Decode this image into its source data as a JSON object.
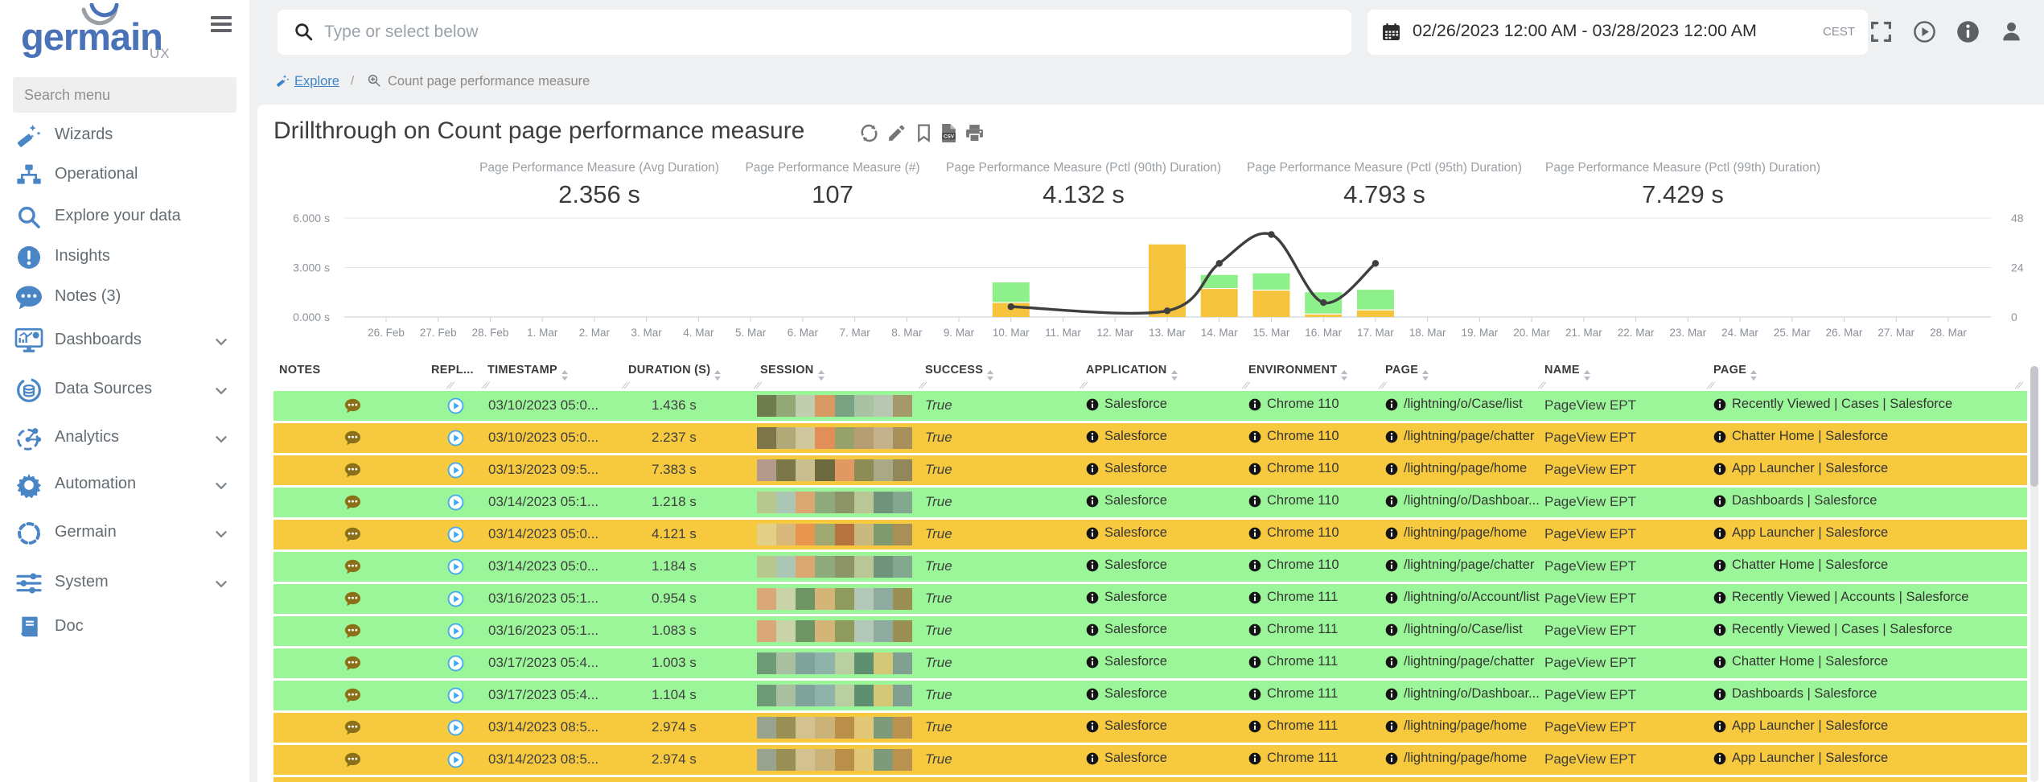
{
  "app": {
    "logo_text": "germain",
    "logo_sub": "UX"
  },
  "topbar": {
    "search_placeholder": "Type or select below",
    "date_range": "02/26/2023 12:00 AM - 03/28/2023 12:00 AM",
    "timezone": "CEST",
    "icons": [
      "fullscreen-icon",
      "play-circle-icon",
      "info-circle-icon",
      "user-icon"
    ]
  },
  "sidebar": {
    "search_placeholder": "Search menu",
    "items": [
      {
        "label": "Wizards",
        "icon": "wand-icon",
        "expandable": false
      },
      {
        "label": "Operational",
        "icon": "sitemap-icon",
        "expandable": false
      },
      {
        "label": "Explore your data",
        "icon": "search-icon",
        "expandable": false
      },
      {
        "label": "Insights",
        "icon": "insight-icon",
        "expandable": false
      },
      {
        "label": "Notes (3)",
        "icon": "comment-icon",
        "expandable": false
      },
      {
        "label": "Dashboards",
        "icon": "dashboard-icon",
        "expandable": true
      },
      {
        "label": "Data Sources",
        "icon": "datasource-icon",
        "expandable": true
      },
      {
        "label": "Analytics",
        "icon": "analytics-icon",
        "expandable": true
      },
      {
        "label": "Automation",
        "icon": "gear-icon",
        "expandable": true
      },
      {
        "label": "Germain",
        "icon": "dashed-circle-icon",
        "expandable": true
      },
      {
        "label": "System",
        "icon": "sliders-icon",
        "expandable": true
      },
      {
        "label": "Doc",
        "icon": "book-icon",
        "expandable": false
      }
    ]
  },
  "breadcrumb": {
    "link": "Explore",
    "link_icon": "wand-icon",
    "separator": "/",
    "current": "Count page performance measure",
    "current_icon": "zoom-in-icon"
  },
  "page": {
    "title": "Drillthrough on Count page performance measure",
    "title_icons": [
      "refresh-icon",
      "edit-icon",
      "bookmark-icon",
      "csv-file-icon",
      "print-icon"
    ]
  },
  "kpis": [
    {
      "label": "Page Performance Measure (Avg Duration)",
      "value": "2.356 s"
    },
    {
      "label": "Page Performance Measure (#)",
      "value": "107"
    },
    {
      "label": "Page Performance Measure (Pctl (90th) Duration)",
      "value": "4.132 s"
    },
    {
      "label": "Page Performance Measure (Pctl (95th) Duration)",
      "value": "4.793 s"
    },
    {
      "label": "Page Performance Measure (Pctl (99th) Duration)",
      "value": "7.429 s"
    }
  ],
  "chart_data": {
    "type": "bar",
    "categories": [
      "26. Feb",
      "27. Feb",
      "28. Feb",
      "1. Mar",
      "2. Mar",
      "3. Mar",
      "4. Mar",
      "5. Mar",
      "6. Mar",
      "7. Mar",
      "8. Mar",
      "9. Mar",
      "10. Mar",
      "11. Mar",
      "12. Mar",
      "13. Mar",
      "14. Mar",
      "15. Mar",
      "16. Mar",
      "17. Mar",
      "18. Mar",
      "19. Mar",
      "20. Mar",
      "21. Mar",
      "22. Mar",
      "23. Mar",
      "24. Mar",
      "25. Mar",
      "26. Mar",
      "27. Mar",
      "28. Mar"
    ],
    "series": [
      {
        "name": "duration-orange",
        "color": "#f5c33c",
        "stack_order": 0,
        "values": [
          0,
          0,
          0,
          0,
          0,
          0,
          0,
          0,
          0,
          0,
          0,
          0,
          0.85,
          0,
          0,
          4.4,
          1.7,
          1.6,
          0.15,
          0.4,
          0,
          0,
          0,
          0,
          0,
          0,
          0,
          0,
          0,
          0,
          0
        ]
      },
      {
        "name": "duration-green",
        "color": "#8df08a",
        "stack_order": 1,
        "values": [
          0,
          0,
          0,
          0,
          0,
          0,
          0,
          0,
          0,
          0,
          0,
          0,
          1.25,
          0,
          0,
          0,
          0.85,
          1.05,
          1.35,
          1.25,
          0,
          0,
          0,
          0,
          0,
          0,
          0,
          0,
          0,
          0,
          0
        ]
      }
    ],
    "line_series": {
      "name": "count",
      "color": "#3f3f3f",
      "axis": "right",
      "values": [
        null,
        null,
        null,
        null,
        null,
        null,
        null,
        null,
        null,
        null,
        null,
        null,
        5,
        null,
        null,
        3,
        26,
        40,
        7,
        26,
        null,
        null,
        null,
        null,
        null,
        null,
        null,
        null,
        null,
        null,
        null
      ]
    },
    "left_axis": {
      "min": 0,
      "max": 6,
      "tick_labels": [
        "0.000 s",
        "3.000 s",
        "6.000 s"
      ]
    },
    "right_axis": {
      "min": 0,
      "max": 48,
      "tick_labels": [
        "0",
        "24",
        "48"
      ]
    },
    "grid": true,
    "legend": "none"
  },
  "table": {
    "columns": [
      {
        "label": "NOTES",
        "sortable": false
      },
      {
        "label": "REPL...",
        "sortable": false
      },
      {
        "label": "TIMESTAMP",
        "sortable": true
      },
      {
        "label": "DURATION (S)",
        "sortable": true
      },
      {
        "label": "SESSION",
        "sortable": true
      },
      {
        "label": "SUCCESS",
        "sortable": true
      },
      {
        "label": "APPLICATION",
        "sortable": true
      },
      {
        "label": "ENVIRONMENT",
        "sortable": true
      },
      {
        "label": "PAGE",
        "sortable": true
      },
      {
        "label": "NAME",
        "sortable": true
      },
      {
        "label": "PAGE",
        "sortable": true
      }
    ],
    "rows": [
      {
        "bg": "green",
        "timestamp": "03/10/2023 05:0...",
        "duration": "1.436 s",
        "success": "True",
        "application": "Salesforce",
        "environment": "Chrome 110",
        "page": "/lightning/o/Case/list",
        "name": "PageView EPT",
        "page2": "Recently Viewed | Cases | Salesforce",
        "session_colors": [
          "#6f7d4e",
          "#93a877",
          "#c2cdb0",
          "#d89a62",
          "#79a383",
          "#a8c2a2",
          "#b9c7b2",
          "#a3996b"
        ]
      },
      {
        "bg": "orange",
        "timestamp": "03/10/2023 05:0...",
        "duration": "2.237 s",
        "success": "True",
        "application": "Salesforce",
        "environment": "Chrome 110",
        "page": "/lightning/page/chatter",
        "name": "PageView EPT",
        "page2": "Chatter Home | Salesforce",
        "session_colors": [
          "#7e744a",
          "#b3a878",
          "#cfc79d",
          "#e08f58",
          "#97a26a",
          "#b79d72",
          "#c3b28c",
          "#a8905c"
        ]
      },
      {
        "bg": "orange",
        "timestamp": "03/13/2023 09:5...",
        "duration": "7.383 s",
        "success": "True",
        "application": "Salesforce",
        "environment": "Chrome 110",
        "page": "/lightning/page/home",
        "name": "PageView EPT",
        "page2": "App Launcher | Salesforce",
        "session_colors": [
          "#b39a8c",
          "#7b7749",
          "#c9bf8e",
          "#6e6a40",
          "#de9a62",
          "#8d8c55",
          "#a9a887",
          "#91875a"
        ]
      },
      {
        "bg": "green",
        "timestamp": "03/14/2023 05:1...",
        "duration": "1.218 s",
        "success": "True",
        "application": "Salesforce",
        "environment": "Chrome 110",
        "page": "/lightning/o/Dashboar...",
        "name": "PageView EPT",
        "page2": "Dashboards | Salesforce",
        "session_colors": [
          "#b7c78d",
          "#abc7b3",
          "#d9a76f",
          "#8fab7d",
          "#8c9468",
          "#b9c795",
          "#6f947b",
          "#82a890"
        ]
      },
      {
        "bg": "orange",
        "timestamp": "03/14/2023 05:0...",
        "duration": "4.121 s",
        "success": "True",
        "application": "Salesforce",
        "environment": "Chrome 110",
        "page": "/lightning/page/home",
        "name": "PageView EPT",
        "page2": "App Launcher | Salesforce",
        "session_colors": [
          "#e3cf87",
          "#d9b87c",
          "#e8954f",
          "#a0a871",
          "#b5743f",
          "#c9b97f",
          "#7f9a6f",
          "#a88f55"
        ]
      },
      {
        "bg": "green",
        "timestamp": "03/14/2023 05:0...",
        "duration": "1.184 s",
        "success": "True",
        "application": "Salesforce",
        "environment": "Chrome 110",
        "page": "/lightning/page/chatter",
        "name": "PageView EPT",
        "page2": "Chatter Home | Salesforce",
        "session_colors": [
          "#b7c78d",
          "#abc7b3",
          "#d9a76f",
          "#8fab7d",
          "#8c9468",
          "#b9c795",
          "#6f947b",
          "#82a890"
        ]
      },
      {
        "bg": "green",
        "timestamp": "03/16/2023 05:1...",
        "duration": "0.954 s",
        "success": "True",
        "application": "Salesforce",
        "environment": "Chrome 111",
        "page": "/lightning/o/Account/list",
        "name": "PageView EPT",
        "page2": "Recently Viewed | Accounts | Salesforce",
        "session_colors": [
          "#d9a77a",
          "#c9d3a8",
          "#6f9464",
          "#d3b578",
          "#8f9a5e",
          "#b3c7b9",
          "#8faba0",
          "#9a8f55"
        ]
      },
      {
        "bg": "green",
        "timestamp": "03/16/2023 05:1...",
        "duration": "1.083 s",
        "success": "True",
        "application": "Salesforce",
        "environment": "Chrome 111",
        "page": "/lightning/o/Case/list",
        "name": "PageView EPT",
        "page2": "Recently Viewed | Cases | Salesforce",
        "session_colors": [
          "#d9a77a",
          "#c9d3a8",
          "#6f9464",
          "#d3b578",
          "#8f9a5e",
          "#b3c7b9",
          "#8faba0",
          "#9a8f55"
        ]
      },
      {
        "bg": "green",
        "timestamp": "03/17/2023 05:4...",
        "duration": "1.003 s",
        "success": "True",
        "application": "Salesforce",
        "environment": "Chrome 111",
        "page": "/lightning/page/chatter",
        "name": "PageView EPT",
        "page2": "Chatter Home | Salesforce",
        "session_colors": [
          "#6f9a78",
          "#a8bfa0",
          "#7fa39a",
          "#8fb3a8",
          "#b9cfa0",
          "#5e8f6f",
          "#d3c778",
          "#7fa08f"
        ]
      },
      {
        "bg": "green",
        "timestamp": "03/17/2023 05:4...",
        "duration": "1.104 s",
        "success": "True",
        "application": "Salesforce",
        "environment": "Chrome 111",
        "page": "/lightning/o/Dashboar...",
        "name": "PageView EPT",
        "page2": "Dashboards | Salesforce",
        "session_colors": [
          "#6f9a78",
          "#a8bfa0",
          "#7fa39a",
          "#8fb3a8",
          "#b9cfa0",
          "#5e8f6f",
          "#d3c778",
          "#7fa08f"
        ]
      },
      {
        "bg": "orange",
        "timestamp": "03/14/2023 08:5...",
        "duration": "2.974 s",
        "success": "True",
        "application": "Salesforce",
        "environment": "Chrome 111",
        "page": "/lightning/page/home",
        "name": "PageView EPT",
        "page2": "App Launcher | Salesforce",
        "session_colors": [
          "#9aa38f",
          "#9a8f55",
          "#d3c18f",
          "#c9b378",
          "#b98f4a",
          "#e3c778",
          "#7f9a78",
          "#b9924f"
        ]
      },
      {
        "bg": "orange",
        "timestamp": "03/14/2023 08:5...",
        "duration": "2.974 s",
        "success": "True",
        "application": "Salesforce",
        "environment": "Chrome 111",
        "page": "/lightning/page/home",
        "name": "PageView EPT",
        "page2": "App Launcher | Salesforce",
        "session_colors": [
          "#9aa38f",
          "#9a8f55",
          "#d3c18f",
          "#c9b378",
          "#b98f4a",
          "#e3c778",
          "#7f9a78",
          "#b9924f"
        ]
      },
      {
        "bg": "orange",
        "partial": true,
        "timestamp": "",
        "duration": "",
        "success": "",
        "application": "",
        "environment": "",
        "page": "",
        "name": "",
        "page2": "",
        "session_colors": []
      }
    ]
  },
  "colors": {
    "row_green": "#9bf699",
    "row_orange": "#f6c93f",
    "bar_green": "#8df08a",
    "bar_orange": "#f5c33c",
    "line_dark": "#3f3f3f",
    "accent_blue": "#4a86c5",
    "link_blue": "#3d85c8",
    "note_icon": "#8a7019",
    "replay_icon": "#3da9f5"
  }
}
